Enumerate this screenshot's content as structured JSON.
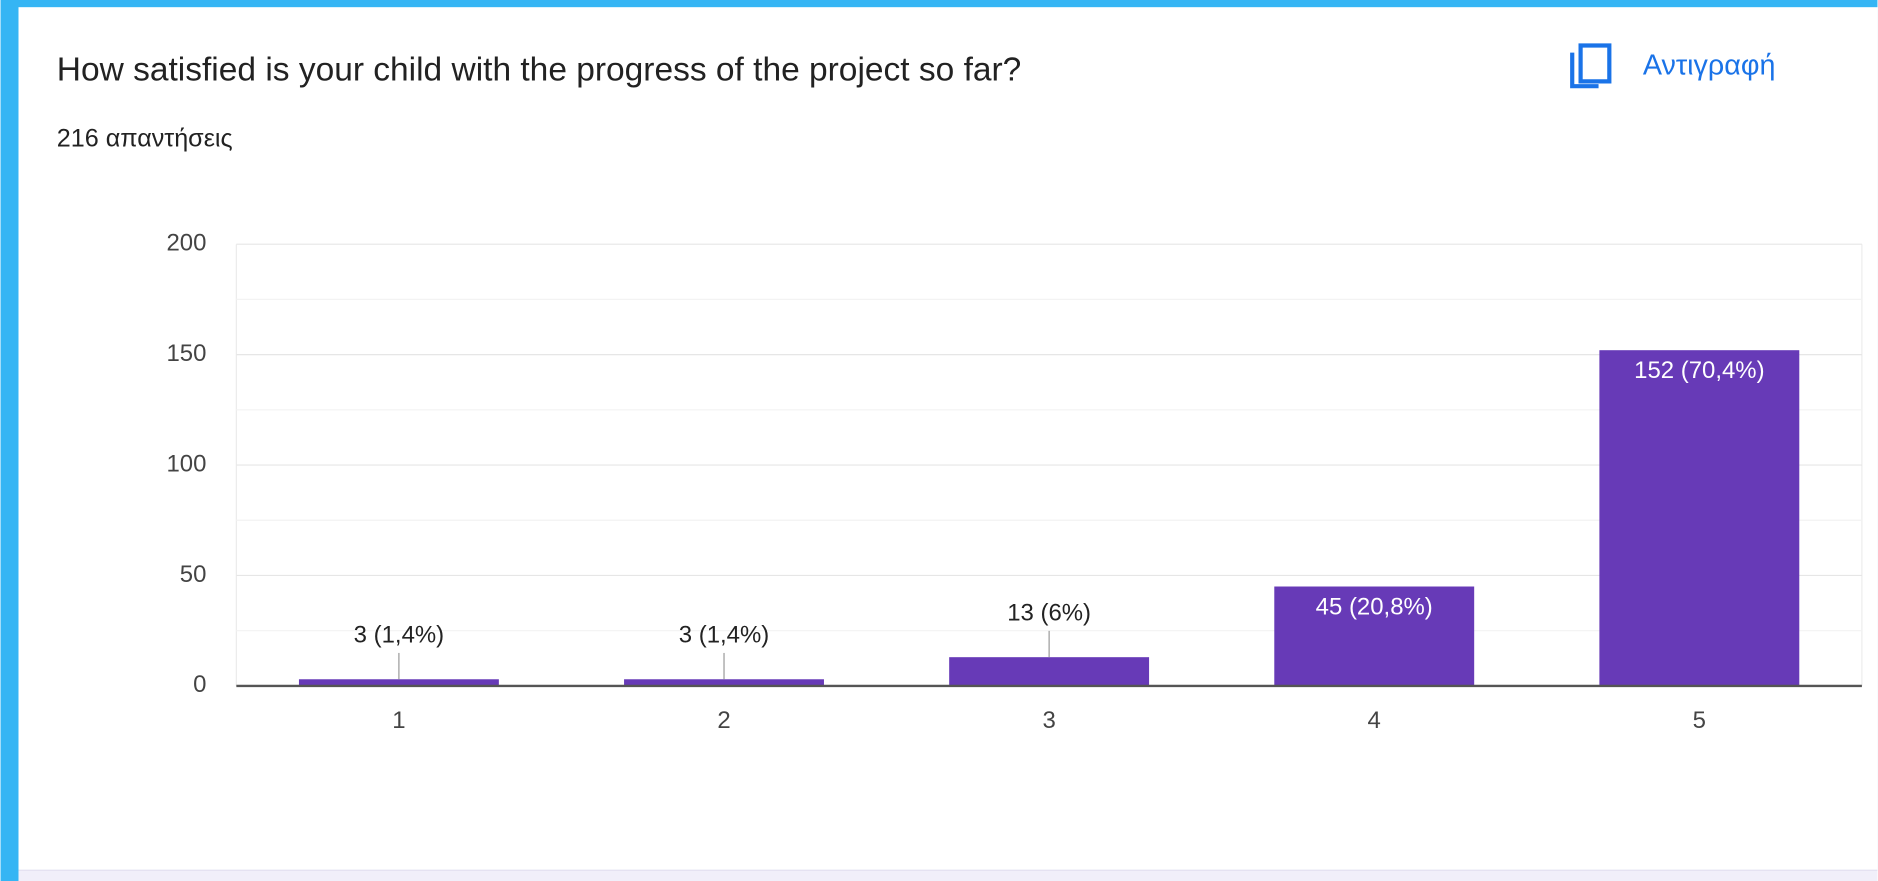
{
  "copy_button": "Αντιγραφή",
  "chart_data": {
    "type": "bar",
    "title": "How satisfied is your child with the progress of the project so far?",
    "subtitle": "216 απαντήσεις",
    "categories": [
      "1",
      "2",
      "3",
      "4",
      "5"
    ],
    "values": [
      3,
      3,
      13,
      45,
      152
    ],
    "value_labels": [
      "3 (1,4%)",
      "3 (1,4%)",
      "13 (6%)",
      "45 (20,8%)",
      "152 (70,4%)"
    ],
    "color": "#673ab7",
    "ylim": [
      0,
      200
    ],
    "yticks": [
      0,
      50,
      100,
      150,
      200
    ],
    "minor_yticks": [
      25,
      75,
      125,
      175
    ],
    "grid": true
  }
}
